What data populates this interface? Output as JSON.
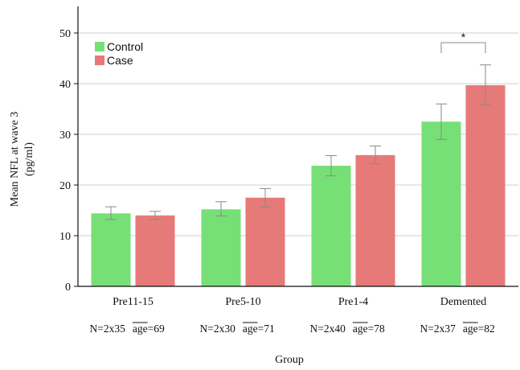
{
  "chart_data": {
    "type": "bar",
    "title": "",
    "xlabel": "Group",
    "ylabel_line1": "Mean NFL at wave 3",
    "ylabel_line2": "(pg/ml)",
    "ylim": [
      0,
      50
    ],
    "yticks": [
      "0",
      "10",
      "20",
      "30",
      "40",
      "50"
    ],
    "grid": true,
    "legend_position": "top-left",
    "categories": [
      "Pre11-15",
      "Pre5-10",
      "Pre1-4",
      "Demented"
    ],
    "series": [
      {
        "name": "Control",
        "color": "#76e076",
        "values": [
          14.4,
          15.2,
          23.8,
          32.5
        ],
        "err_low": [
          13.2,
          13.9,
          21.8,
          29.0
        ],
        "err_high": [
          15.7,
          16.7,
          25.8,
          36.0
        ]
      },
      {
        "name": "Case",
        "color": "#e67a78",
        "values": [
          14.0,
          17.5,
          25.9,
          39.7
        ],
        "err_low": [
          13.2,
          15.7,
          24.2,
          35.8
        ],
        "err_high": [
          14.8,
          19.3,
          27.7,
          43.7
        ]
      }
    ],
    "group_info": [
      {
        "n": "N=2x35",
        "age_label": "age",
        "age_value": "=69"
      },
      {
        "n": "N=2x30",
        "age_label": "age",
        "age_value": "=71"
      },
      {
        "n": "N=2x40",
        "age_label": "age",
        "age_value": "=78"
      },
      {
        "n": "N=2x37",
        "age_label": "age",
        "age_value": "=82"
      }
    ],
    "significance": {
      "category_index": 3,
      "label": "*"
    }
  }
}
